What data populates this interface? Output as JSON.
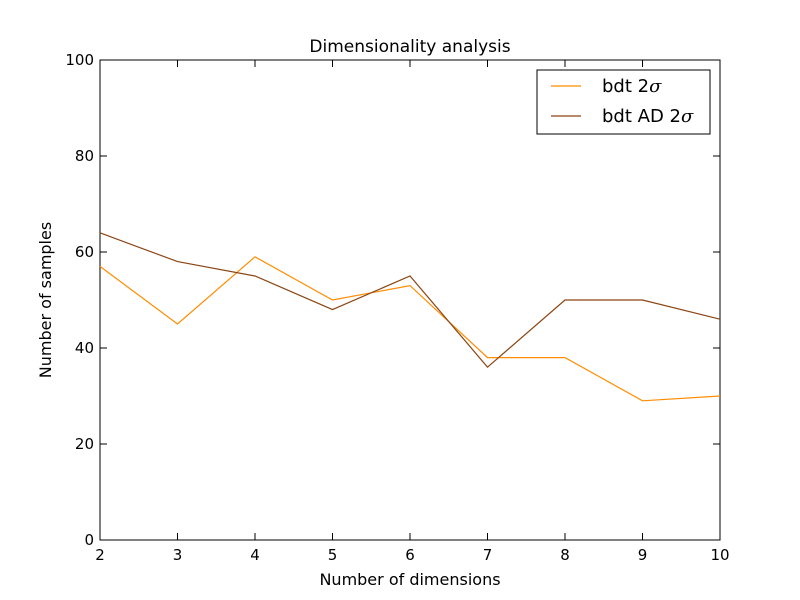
{
  "chart_data": {
    "type": "line",
    "title": "Dimensionality analysis",
    "xlabel": "Number of dimensions",
    "ylabel": "Number of samples",
    "xlim": [
      2,
      10
    ],
    "ylim": [
      0,
      100
    ],
    "xticks": [
      2,
      3,
      4,
      5,
      6,
      7,
      8,
      9,
      10
    ],
    "yticks": [
      0,
      20,
      40,
      60,
      80,
      100
    ],
    "grid": false,
    "legend_position": "top-right",
    "x": [
      2,
      3,
      4,
      5,
      6,
      7,
      8,
      9,
      10
    ],
    "series": [
      {
        "name_text": "bdt 2",
        "name_symbol": "σ",
        "color": "#ff8c00",
        "values": [
          57,
          45,
          59,
          50,
          53,
          38,
          38,
          29,
          30
        ]
      },
      {
        "name_text": "bdt AD 2",
        "name_symbol": "σ",
        "color": "#8b4513",
        "values": [
          64,
          58,
          55,
          48,
          55,
          36,
          50,
          50,
          46
        ]
      }
    ]
  }
}
